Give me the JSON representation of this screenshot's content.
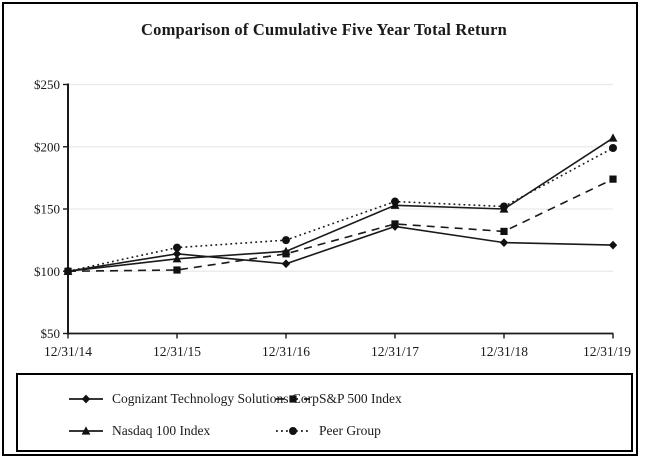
{
  "page": {
    "title": "Comparison of Cumulative Five Year Total Return"
  },
  "chart_data": {
    "type": "line",
    "title": "Comparison of Cumulative Five Year Total Return",
    "x_labels": [
      "12/31/14",
      "12/31/15",
      "12/31/16",
      "12/31/17",
      "12/31/18",
      "12/31/19"
    ],
    "y_tick_values": [
      50,
      100,
      150,
      200,
      250
    ],
    "y_tick_labels": [
      "$50",
      "$100",
      "$150",
      "$200",
      "$250"
    ],
    "ylim": [
      50,
      250
    ],
    "grid": true,
    "legend_position": "bottom-box",
    "series": [
      {
        "name": "Cognizant Technology Solutions Corp",
        "marker": "diamond",
        "line": "solid",
        "values": [
          100,
          114,
          106,
          136,
          123,
          121
        ]
      },
      {
        "name": "S&P 500 Index",
        "marker": "square",
        "line": "dashed",
        "values": [
          100,
          101,
          114,
          138,
          132,
          174
        ]
      },
      {
        "name": "Nasdaq 100 Index",
        "marker": "triangle",
        "line": "solid",
        "values": [
          100,
          110,
          116,
          153,
          150,
          207
        ]
      },
      {
        "name": "Peer Group",
        "marker": "circle",
        "line": "dotted",
        "values": [
          100,
          119,
          125,
          156,
          152,
          199
        ]
      }
    ],
    "colors": {
      "line": "#1a1a1a",
      "marker": "#111111",
      "grid": "#e9e9e9",
      "axis": "#1a1a1a",
      "background": "#ffffff"
    }
  }
}
